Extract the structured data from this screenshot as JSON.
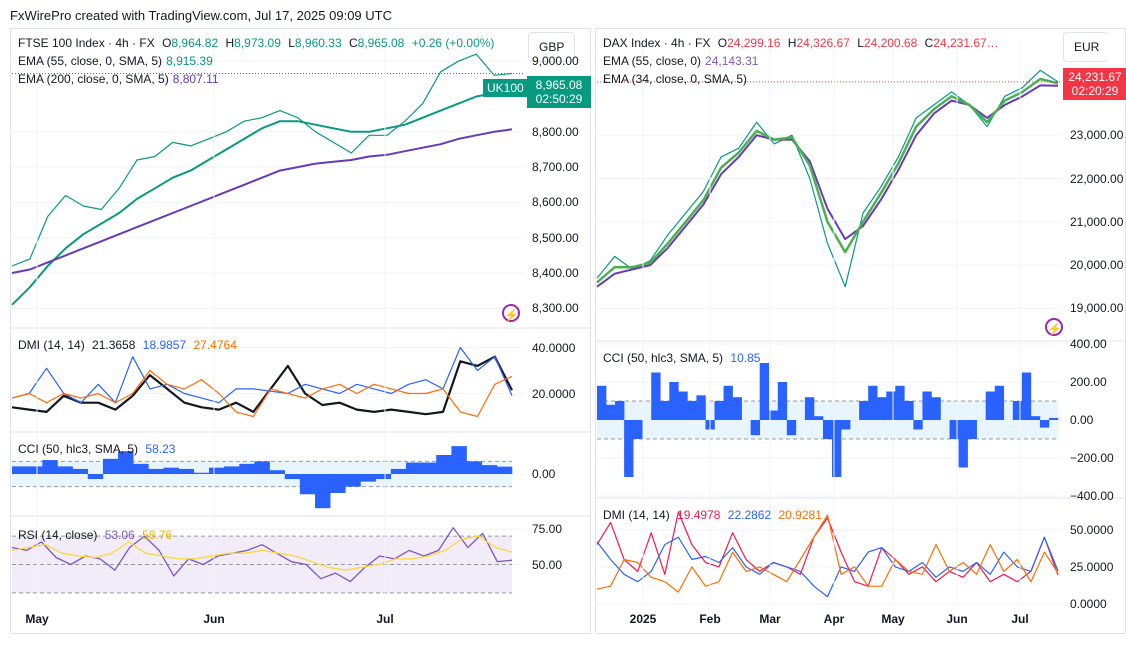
{
  "credit": "FxWirePro created with TradingView.com, Jul 17, 2025 09:09 UTC",
  "colors": {
    "up": "#089981",
    "down": "#f23645",
    "ema_green": "#089981",
    "ema_purple": "#673ab7",
    "dmi_adx": "#131722",
    "dmi_plus": "#2962ff",
    "dmi_minus": "#ff6d00",
    "dmi_red": "#f7174f",
    "cci": "#2962ff",
    "rsi": "#7e57c2",
    "rsi_ma": "#fdd835",
    "dax_ema34": "#4caf50"
  },
  "left": {
    "title": "FTSE 100 Index · 4h · FX",
    "o_label": "O",
    "o": "8,964.82",
    "h_label": "H",
    "h": "8,973.09",
    "l_label": "L",
    "l": "8,960.33",
    "c_label": "C",
    "c": "8,965.08",
    "change": "+0.26 (+0.00%)",
    "ema1_label": "EMA (55, close, 0, SMA, 5)",
    "ema1_value": "8,915.39",
    "ema2_label": "EMA (200, close, 0, SMA, 5)",
    "ema2_value": "8,807.11",
    "currency": "GBP",
    "symbol_badge": "UK100",
    "price_badge": "8,965.08",
    "countdown": "02:50:29",
    "dmi_label": "DMI (14, 14)",
    "dmi_adx": "21.3658",
    "dmi_plus": "18.9857",
    "dmi_minus": "27.4764",
    "cci_label": "CCI (50, hlc3, SMA, 5)",
    "cci_value": "58.23",
    "rsi_label": "RSI (14, close)",
    "rsi_value": "53.06",
    "rsi_ma": "58.76",
    "time_labels": [
      "May",
      "Jun",
      "Jul"
    ]
  },
  "right": {
    "title": "DAX Index · 4h · FX",
    "o_label": "O",
    "o": "24,299.16",
    "h_label": "H",
    "h": "24,326.67",
    "l_label": "L",
    "l": "24,200.68",
    "c_label": "C",
    "c": "24,231.67…",
    "ema1_label": "EMA (55, close, 0)",
    "ema1_value": "24,143.31",
    "ema2_label": "EMA (34, close, 0, SMA, 5)",
    "currency": "EUR",
    "price_badge": "24,231.67",
    "countdown": "02:20:29",
    "cci_label": "CCI (50, hlc3, SMA, 5)",
    "cci_value": "10.85",
    "dmi_label": "DMI (14, 14)",
    "dmi_red": "19.4978",
    "dmi_blue": "22.2862",
    "dmi_orange": "20.9281",
    "time_labels": [
      "2025",
      "Feb",
      "Mar",
      "Apr",
      "May",
      "Jun",
      "Jul"
    ]
  },
  "chart_data": [
    {
      "type": "line",
      "name_hint": "FTSE 100 price",
      "x_labels": [
        "May",
        "Jun",
        "Jul"
      ],
      "ylim": [
        8250,
        9060
      ],
      "yticks": [
        "8,300.00",
        "8,400.00",
        "8,500.00",
        "8,600.00",
        "8,700.00",
        "8,800.00",
        "9,000.00"
      ],
      "series": [
        {
          "name": "FTSE 100 Index",
          "values": [
            8420,
            8440,
            8560,
            8620,
            8590,
            8580,
            8640,
            8720,
            8730,
            8770,
            8760,
            8780,
            8800,
            8830,
            8840,
            8860,
            8840,
            8800,
            8770,
            8740,
            8790,
            8790,
            8830,
            8880,
            8970,
            9000,
            9020,
            8960,
            8965
          ]
        },
        {
          "name": "EMA (55, close, 0, SMA, 5)",
          "values": [
            8310,
            8360,
            8420,
            8470,
            8510,
            8540,
            8570,
            8610,
            8640,
            8670,
            8690,
            8720,
            8750,
            8780,
            8810,
            8830,
            8830,
            8820,
            8810,
            8800,
            8800,
            8810,
            8820,
            8840,
            8860,
            8880,
            8900,
            8910,
            8915
          ]
        },
        {
          "name": "EMA (200, close, 0, SMA, 5)",
          "values": [
            8400,
            8410,
            8430,
            8450,
            8470,
            8490,
            8510,
            8530,
            8550,
            8570,
            8590,
            8610,
            8630,
            8650,
            8670,
            8690,
            8700,
            8710,
            8715,
            8720,
            8730,
            8735,
            8745,
            8755,
            8765,
            8780,
            8790,
            8800,
            8807
          ]
        }
      ]
    },
    {
      "type": "line",
      "name_hint": "FTSE DMI",
      "ylim": [
        5,
        45
      ],
      "yticks": [
        "20.0000",
        "40.0000"
      ],
      "series": [
        {
          "name": "ADX",
          "values": [
            14,
            13,
            12,
            19,
            16,
            16,
            13,
            19,
            28,
            22,
            16,
            14,
            13,
            16,
            12,
            22,
            32,
            20,
            15,
            16,
            13,
            12,
            13,
            12,
            11,
            12,
            34,
            32,
            36,
            21.4
          ]
        },
        {
          "name": "+DI",
          "values": [
            18,
            20,
            31,
            20,
            16,
            24,
            16,
            36,
            22,
            24,
            20,
            18,
            16,
            22,
            22,
            21,
            20,
            24,
            22,
            20,
            24,
            22,
            20,
            24,
            26,
            22,
            40,
            30,
            36,
            19
          ]
        },
        {
          "name": "-DI",
          "values": [
            18,
            20,
            16,
            20,
            18,
            20,
            16,
            20,
            30,
            24,
            22,
            26,
            20,
            12,
            10,
            22,
            20,
            18,
            22,
            24,
            20,
            24,
            22,
            20,
            20,
            22,
            12,
            10,
            24,
            27.5
          ]
        }
      ]
    },
    {
      "type": "bar",
      "name_hint": "FTSE CCI",
      "ylim": [
        -300,
        300
      ],
      "yticks": [
        "0.00"
      ],
      "bands": [
        -100,
        100
      ],
      "values": [
        60,
        60,
        110,
        60,
        40,
        -40,
        120,
        180,
        80,
        40,
        50,
        40,
        10,
        50,
        60,
        80,
        100,
        30,
        -40,
        -160,
        -270,
        -150,
        -100,
        -60,
        -40,
        40,
        90,
        90,
        150,
        220,
        100,
        70,
        58
      ]
    },
    {
      "type": "line",
      "name_hint": "FTSE RSI",
      "ylim": [
        25,
        80
      ],
      "yticks": [
        "50.00",
        "75.00"
      ],
      "bands": [
        30,
        50,
        70
      ],
      "series": [
        {
          "name": "RSI",
          "values": [
            62,
            60,
            66,
            55,
            50,
            56,
            54,
            46,
            62,
            70,
            60,
            42,
            54,
            50,
            56,
            58,
            60,
            64,
            58,
            52,
            50,
            40,
            44,
            38,
            48,
            56,
            54,
            60,
            56,
            60,
            76,
            62,
            72,
            52,
            53.06
          ]
        },
        {
          "name": "RSI MA",
          "values": [
            60,
            62,
            64,
            58,
            56,
            55,
            58,
            66,
            58,
            56,
            54,
            54,
            56,
            58,
            58,
            60,
            58,
            56,
            52,
            48,
            46,
            48,
            50,
            54,
            54,
            56,
            60,
            68,
            70,
            62,
            58.76
          ]
        }
      ]
    },
    {
      "type": "line",
      "name_hint": "DAX price",
      "x_labels": [
        "2025",
        "Feb",
        "Mar",
        "Apr",
        "May",
        "Jun",
        "Jul"
      ],
      "ylim": [
        18500,
        25200
      ],
      "yticks": [
        "19,000.00",
        "20,000.00",
        "21,000.00",
        "22,000.00",
        "23,000.00"
      ],
      "series": [
        {
          "name": "DAX Index",
          "values": [
            19700,
            20200,
            19900,
            20100,
            20700,
            21200,
            21700,
            22500,
            22700,
            23300,
            22800,
            23000,
            22000,
            20500,
            19500,
            21200,
            21800,
            22500,
            23400,
            23700,
            24000,
            23700,
            23200,
            23900,
            24100,
            24500,
            24232
          ]
        },
        {
          "name": "EMA (55, close, 0)",
          "values": [
            19500,
            19800,
            19900,
            20000,
            20400,
            20900,
            21400,
            22100,
            22500,
            23000,
            22900,
            22900,
            22400,
            21300,
            20600,
            20900,
            21500,
            22200,
            23000,
            23500,
            23800,
            23700,
            23400,
            23700,
            23900,
            24150,
            24143
          ]
        },
        {
          "name": "EMA (34, close, 0, SMA, 5)",
          "values": [
            19600,
            19950,
            19950,
            20050,
            20500,
            21000,
            21500,
            22250,
            22600,
            23100,
            22900,
            22950,
            22300,
            21000,
            20300,
            21000,
            21650,
            22350,
            23200,
            23600,
            23900,
            23700,
            23300,
            23800,
            24000,
            24300,
            24200
          ]
        }
      ]
    },
    {
      "type": "bar",
      "name_hint": "DAX CCI",
      "ylim": [
        -400,
        400
      ],
      "yticks": [
        "400.00",
        "200.00",
        "0.00",
        "−200.00",
        "−400.00"
      ],
      "bands": [
        -100,
        100
      ],
      "values": [
        180,
        80,
        100,
        -300,
        -100,
        0,
        250,
        100,
        200,
        150,
        100,
        130,
        -50,
        100,
        180,
        120,
        0,
        -80,
        300,
        50,
        200,
        -80,
        0,
        120,
        20,
        -100,
        -300,
        -50,
        0,
        100,
        180,
        120,
        150,
        180,
        100,
        -50,
        150,
        120,
        0,
        -100,
        -250,
        -100,
        0,
        150,
        180,
        0,
        100,
        250,
        20,
        -40,
        10.85
      ]
    },
    {
      "type": "line",
      "name_hint": "DAX DMI",
      "ylim": [
        0,
        62
      ],
      "yticks": [
        "0.0000",
        "25.0000",
        "50.0000"
      ],
      "series": [
        {
          "name": "red",
          "values": [
            40,
            55,
            30,
            22,
            48,
            20,
            62,
            40,
            28,
            25,
            48,
            30,
            22,
            28,
            25,
            20,
            45,
            58,
            35,
            15,
            12,
            38,
            30,
            20,
            25,
            15,
            22,
            18,
            28,
            15,
            20,
            15,
            22,
            45,
            19.5
          ]
        },
        {
          "name": "blue",
          "values": [
            42,
            30,
            20,
            15,
            22,
            40,
            45,
            30,
            32,
            28,
            38,
            25,
            20,
            28,
            25,
            22,
            12,
            5,
            25,
            22,
            35,
            38,
            25,
            22,
            28,
            18,
            25,
            22,
            28,
            20,
            35,
            25,
            22,
            45,
            22.3
          ]
        },
        {
          "name": "orange",
          "values": [
            10,
            12,
            30,
            28,
            18,
            15,
            8,
            25,
            12,
            15,
            35,
            22,
            25,
            20,
            15,
            30,
            45,
            60,
            20,
            25,
            12,
            12,
            30,
            22,
            20,
            40,
            22,
            28,
            20,
            40,
            22,
            30,
            15,
            35,
            20.9
          ]
        }
      ]
    }
  ]
}
